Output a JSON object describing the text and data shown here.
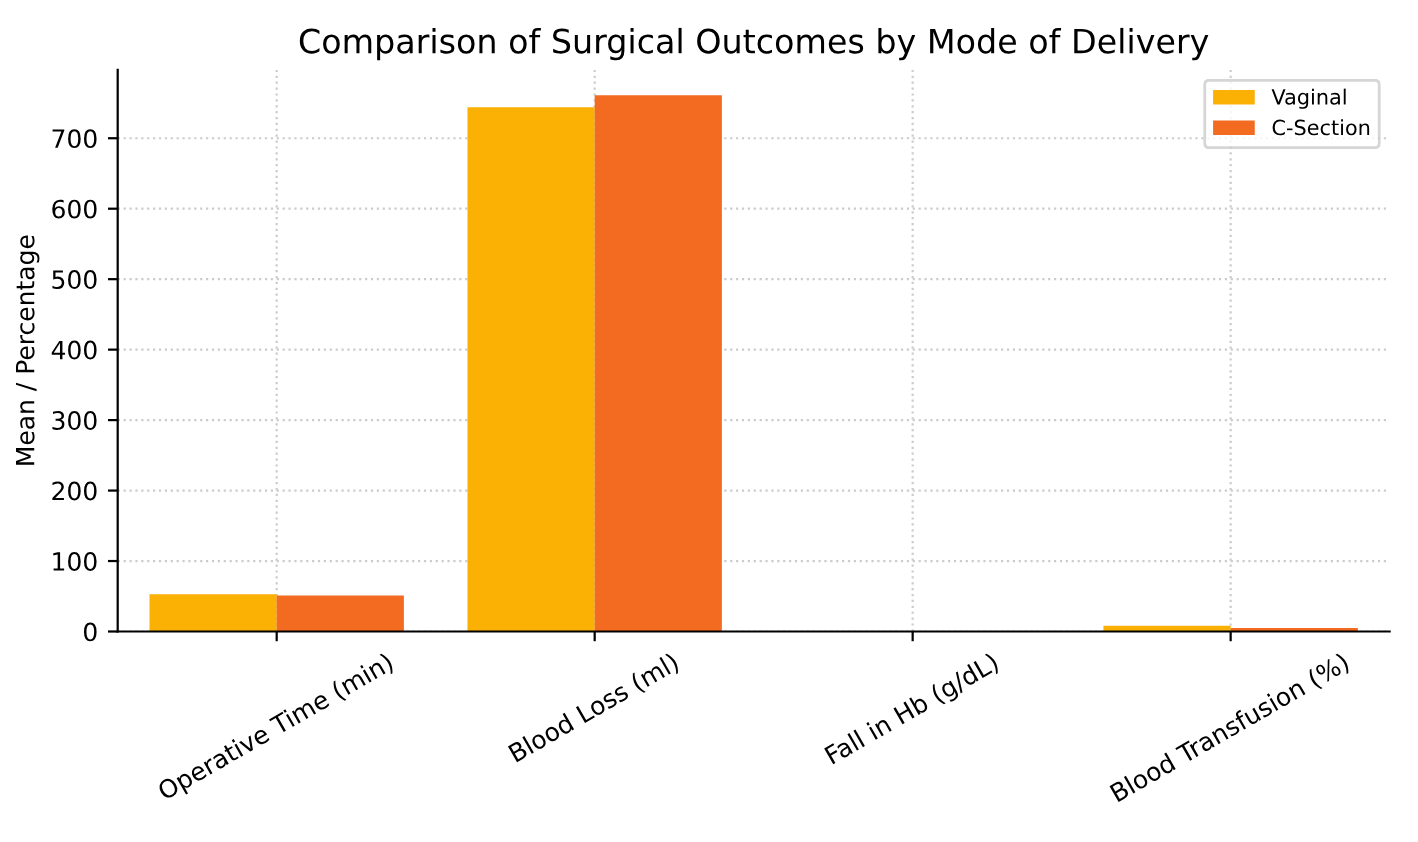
{
  "chart_data": {
    "type": "bar",
    "title": "Comparison of Surgical Outcomes by Mode of Delivery",
    "ylabel": "Mean / Percentage",
    "categories": [
      "Operative Time (min)",
      "Blood Loss (ml)",
      "Fall in Hb (g/dL)",
      "Blood Transfusion (%)"
    ],
    "series": [
      {
        "name": "Vaginal",
        "color": "#fbb004",
        "values": [
          53,
          744,
          null,
          8
        ]
      },
      {
        "name": "C-Section",
        "color": "#f26b21",
        "values": [
          51,
          761,
          null,
          5
        ]
      }
    ],
    "ylim": [
      0,
      797
    ],
    "yticks": [
      0,
      100,
      200,
      300,
      400,
      500,
      600,
      700
    ],
    "grid": true,
    "legend": "top right"
  }
}
